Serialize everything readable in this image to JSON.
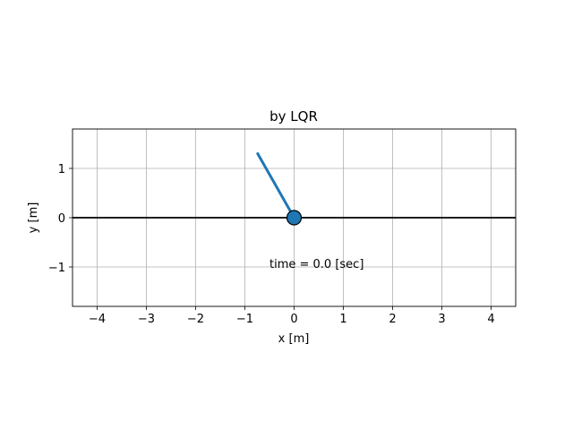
{
  "chart_data": {
    "type": "line",
    "title": "by LQR",
    "xlabel": "x [m]",
    "ylabel": "y [m]",
    "xlim": [
      -4.5,
      4.5
    ],
    "ylim": [
      -1.8,
      1.8
    ],
    "xticks": [
      -4,
      -3,
      -2,
      -1,
      0,
      1,
      2,
      3,
      4
    ],
    "xtick_labels": [
      "−4",
      "−3",
      "−2",
      "−1",
      "0",
      "1",
      "2",
      "3",
      "4"
    ],
    "yticks": [
      -1,
      0,
      1
    ],
    "ytick_labels": [
      "−1",
      "0",
      "1"
    ],
    "grid": true,
    "ground_line": {
      "x": [
        -4.5,
        4.5
      ],
      "y": [
        0,
        0
      ],
      "color": "#000000"
    },
    "pendulum_rod": {
      "x": [
        0,
        -0.74
      ],
      "y": [
        0,
        1.3
      ],
      "color": "#1f77b4"
    },
    "cart": {
      "x": 0,
      "y": 0,
      "color": "#1f77b4"
    },
    "annotation": {
      "text": "time = 0.0 [sec]",
      "x": -0.5,
      "y": -1.0
    }
  }
}
